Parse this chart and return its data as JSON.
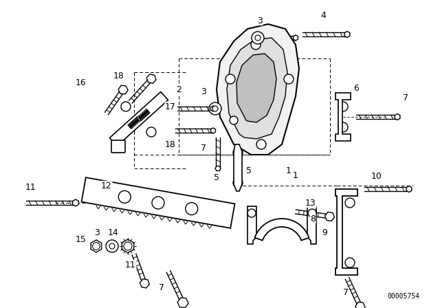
{
  "background_color": "#ffffff",
  "image_code": "00005754",
  "line_color": "#000000"
}
